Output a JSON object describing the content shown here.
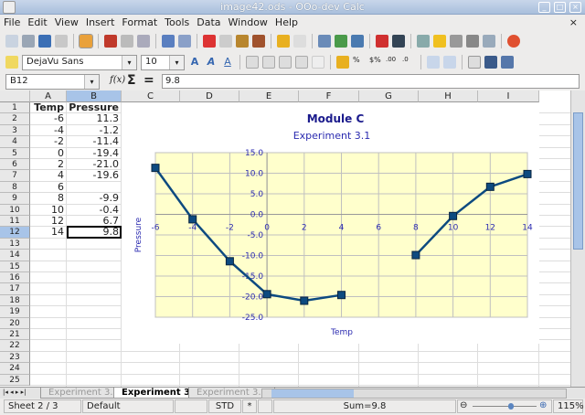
{
  "window": {
    "title": "image42.ods - OOo-dev Calc"
  },
  "menu": [
    "File",
    "Edit",
    "View",
    "Insert",
    "Format",
    "Tools",
    "Data",
    "Window",
    "Help"
  ],
  "format_bar": {
    "font_name": "DejaVu Sans",
    "font_size": "10"
  },
  "formula_bar": {
    "cell_ref": "B12",
    "fx": "f(x)",
    "sum": "Σ",
    "equals": "=",
    "content": "9.8"
  },
  "columns": [
    "A",
    "B",
    "C",
    "D",
    "E",
    "F",
    "G",
    "H",
    "I"
  ],
  "selected_cell": "B12",
  "rows": [
    [
      "Temp",
      "Pressure"
    ],
    [
      "-6",
      "11.3"
    ],
    [
      "-4",
      "-1.2"
    ],
    [
      "-2",
      "-11.4"
    ],
    [
      "0",
      "-19.4"
    ],
    [
      "2",
      "-21.0"
    ],
    [
      "4",
      "-19.6"
    ],
    [
      "6",
      ""
    ],
    [
      "8",
      "-9.9"
    ],
    [
      "10",
      "-0.4"
    ],
    [
      "12",
      "6.7"
    ],
    [
      "14",
      "9.8"
    ]
  ],
  "row_count": 25,
  "chart_data": {
    "type": "line",
    "title": "Module C",
    "subtitle": "Experiment 3.1",
    "xlabel": "Temp",
    "ylabel": "Pressure",
    "x": [
      -6,
      -4,
      -2,
      0,
      2,
      4,
      6,
      8,
      10,
      12,
      14
    ],
    "series": [
      {
        "values": [
          11.3,
          -1.2,
          -11.4,
          -19.4,
          -21.0,
          -19.6,
          null,
          -9.9,
          -0.4,
          6.7,
          9.8
        ]
      }
    ],
    "xlim": [
      -6,
      14
    ],
    "ylim": [
      -25,
      15
    ],
    "xticks": [
      "-6",
      "-4",
      "-2",
      "0",
      "2",
      "4",
      "6",
      "8",
      "10",
      "12",
      "14"
    ],
    "yticks": [
      "15.0",
      "10.0",
      "5.0",
      "0.0",
      "-5.0",
      "-10.0",
      "-15.0",
      "-20.0",
      "-25.0"
    ],
    "grid": true,
    "legend": "none",
    "colors": {
      "line": "#0d4a80",
      "plot_bg": "#ffffcc",
      "text": "#2b2bb0",
      "title": "#1a1a8c"
    }
  },
  "sheet_tabs": [
    "Experiment 3.0",
    "Experiment 3.1",
    "Experiment 3.2"
  ],
  "active_tab": 1,
  "status": {
    "sheet": "Sheet 2 / 3",
    "style": "Default",
    "mode": "STD",
    "modified": "*",
    "sum": "Sum=9.8",
    "zoom": "115%",
    "zoom_level": 0.6
  }
}
